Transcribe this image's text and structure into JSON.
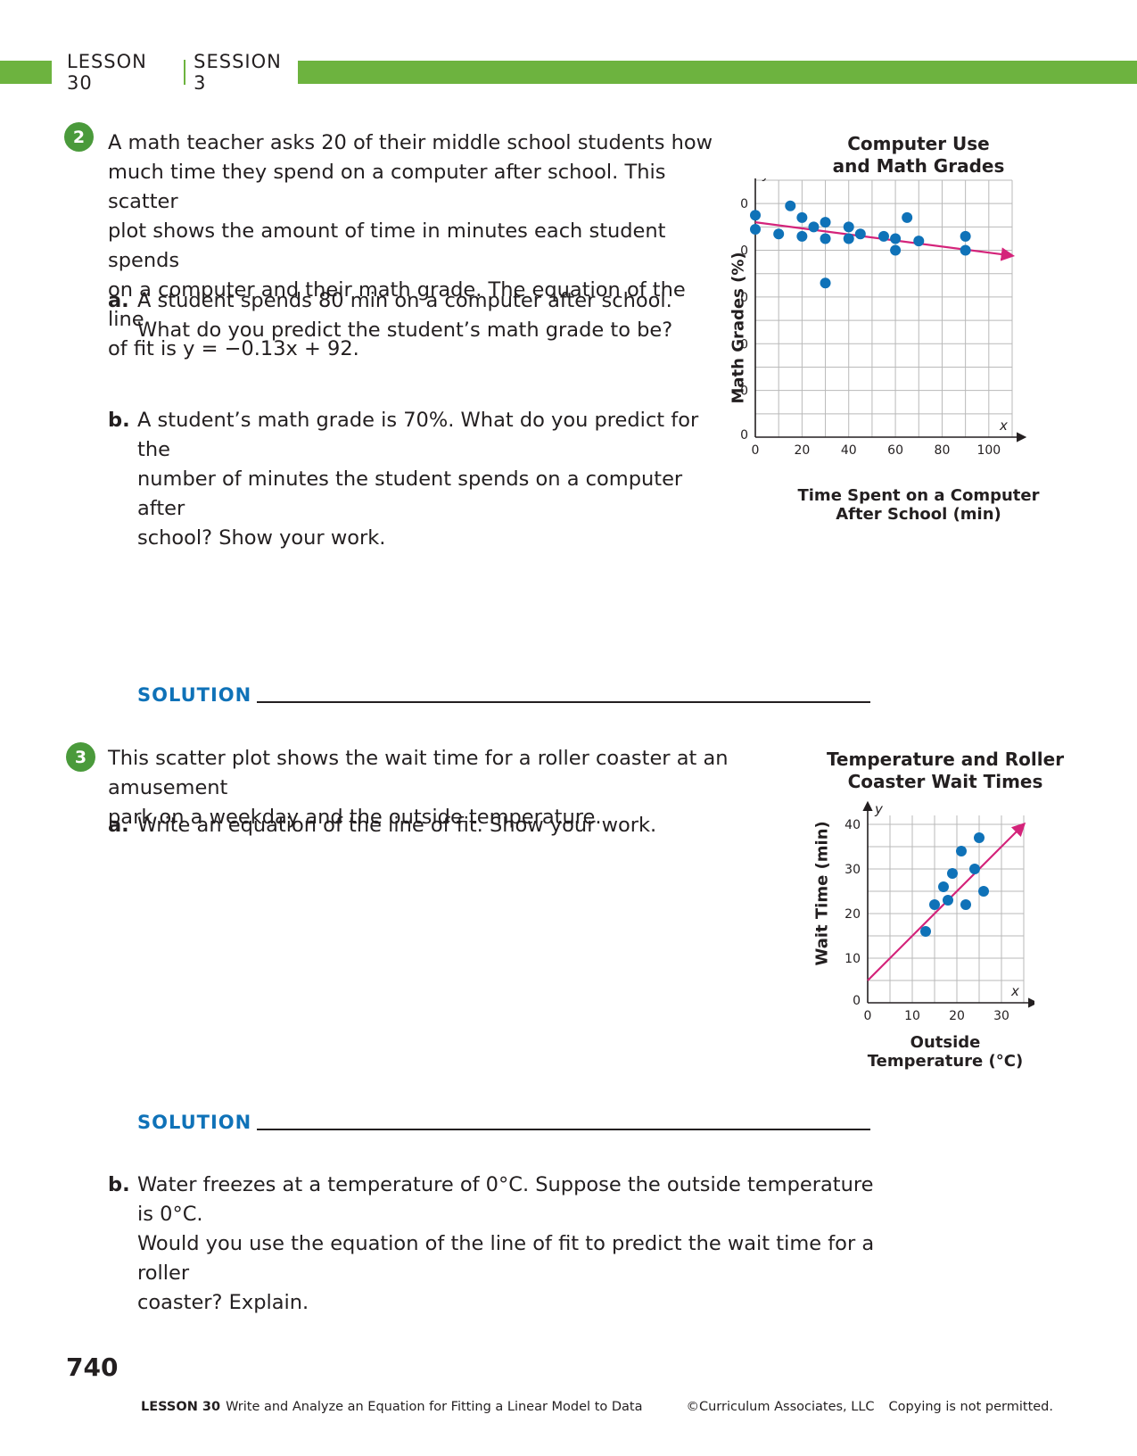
{
  "header": {
    "lesson": "LESSON 30",
    "session": "SESSION 3"
  },
  "problem2": {
    "number": "2",
    "stem": "A math teacher asks 20 of their middle school students how much time they spend on a computer after school. This scatter plot shows the amount of time in minutes each student spends on a computer and their math grade. The equation of the line of fit is y = −0.13x + 92.",
    "stem_lines": [
      "A math teacher asks 20 of their middle school students how",
      "much time they spend on a computer after school. This scatter",
      "plot shows the amount of time in minutes each student spends",
      "on a computer and their math grade. The equation of the line",
      "of fit is y = −0.13x + 92."
    ],
    "part_a": {
      "label": "a.",
      "lines": [
        "A student spends 80 min on a computer after school.",
        "What do you predict the student’s math grade to be?"
      ]
    },
    "part_b": {
      "label": "b.",
      "lines": [
        "A student’s math grade is 70%. What do you predict for the",
        "number of minutes the student spends on a computer after",
        "school? Show your work."
      ]
    },
    "solution_label": "SOLUTION"
  },
  "problem3": {
    "number": "3",
    "stem_lines": [
      "This scatter plot shows the wait time for a roller coaster at an amusement",
      "park on a weekday and the outside temperature."
    ],
    "part_a": {
      "label": "a.",
      "lines": [
        "Write an equation of the line of fit. Show your work."
      ]
    },
    "solution_label": "SOLUTION",
    "part_b": {
      "label": "b.",
      "lines": [
        "Water freezes at a temperature of 0°C. Suppose the outside temperature is 0°C.",
        "Would you use the equation of the line of fit to predict the wait time for a roller",
        "coaster? Explain."
      ]
    }
  },
  "chart_data": [
    {
      "type": "scatter",
      "title_lines": [
        "Computer Use",
        "and Math Grades"
      ],
      "title": "Computer Use and Math Grades",
      "xlabel_lines": [
        "Time Spent on a Computer",
        "After School (min)"
      ],
      "xlabel": "Time Spent on a Computer After School (min)",
      "ylabel": "Math Grades (%)",
      "x_var": "x",
      "y_var": "y",
      "xlim": [
        0,
        110
      ],
      "ylim": [
        0,
        110
      ],
      "x_ticks": [
        0,
        20,
        40,
        60,
        80,
        100
      ],
      "y_ticks": [
        0,
        20,
        40,
        60,
        80,
        100
      ],
      "grid": true,
      "grid_step": 10,
      "point_color": "#0f72b8",
      "line_color": "#d4237a",
      "points": [
        [
          0,
          95
        ],
        [
          0,
          89
        ],
        [
          10,
          87
        ],
        [
          15,
          99
        ],
        [
          20,
          94
        ],
        [
          20,
          86
        ],
        [
          25,
          90
        ],
        [
          30,
          92
        ],
        [
          30,
          85
        ],
        [
          30,
          66
        ],
        [
          40,
          90
        ],
        [
          40,
          85
        ],
        [
          45,
          87
        ],
        [
          55,
          86
        ],
        [
          60,
          85
        ],
        [
          60,
          80
        ],
        [
          65,
          94
        ],
        [
          70,
          84
        ],
        [
          90,
          86
        ],
        [
          90,
          80
        ]
      ],
      "fit_line": {
        "slope": -0.13,
        "intercept": 92,
        "x_start": 0,
        "x_end": 110
      }
    },
    {
      "type": "scatter",
      "title_lines": [
        "Temperature and Roller",
        "Coaster Wait Times"
      ],
      "title": "Temperature and Roller Coaster Wait Times",
      "xlabel_lines": [
        "Outside",
        "Temperature (°C)"
      ],
      "xlabel": "Outside Temperature (°C)",
      "ylabel": "Wait Time (min)",
      "x_var": "x",
      "y_var": "y",
      "xlim": [
        0,
        35
      ],
      "ylim": [
        0,
        42
      ],
      "x_ticks": [
        0,
        10,
        20,
        30
      ],
      "y_ticks": [
        0,
        10,
        20,
        30,
        40
      ],
      "grid": true,
      "grid_step": 5,
      "point_color": "#0f72b8",
      "line_color": "#d4237a",
      "points": [
        [
          13,
          16
        ],
        [
          15,
          22
        ],
        [
          17,
          26
        ],
        [
          18,
          23
        ],
        [
          19,
          29
        ],
        [
          21,
          34
        ],
        [
          22,
          22
        ],
        [
          24,
          30
        ],
        [
          25,
          37
        ],
        [
          26,
          25
        ]
      ],
      "fit_line": {
        "x1": 0,
        "y1": 5,
        "x2": 35,
        "y2": 40
      }
    }
  ],
  "footer": {
    "page_number": "740",
    "lesson_label": "LESSON 30",
    "lesson_title": "Write and Analyze an Equation for Fitting a Linear Model to Data",
    "copyright": "©Curriculum Associates, LLC",
    "notice": "Copying is not permitted."
  }
}
